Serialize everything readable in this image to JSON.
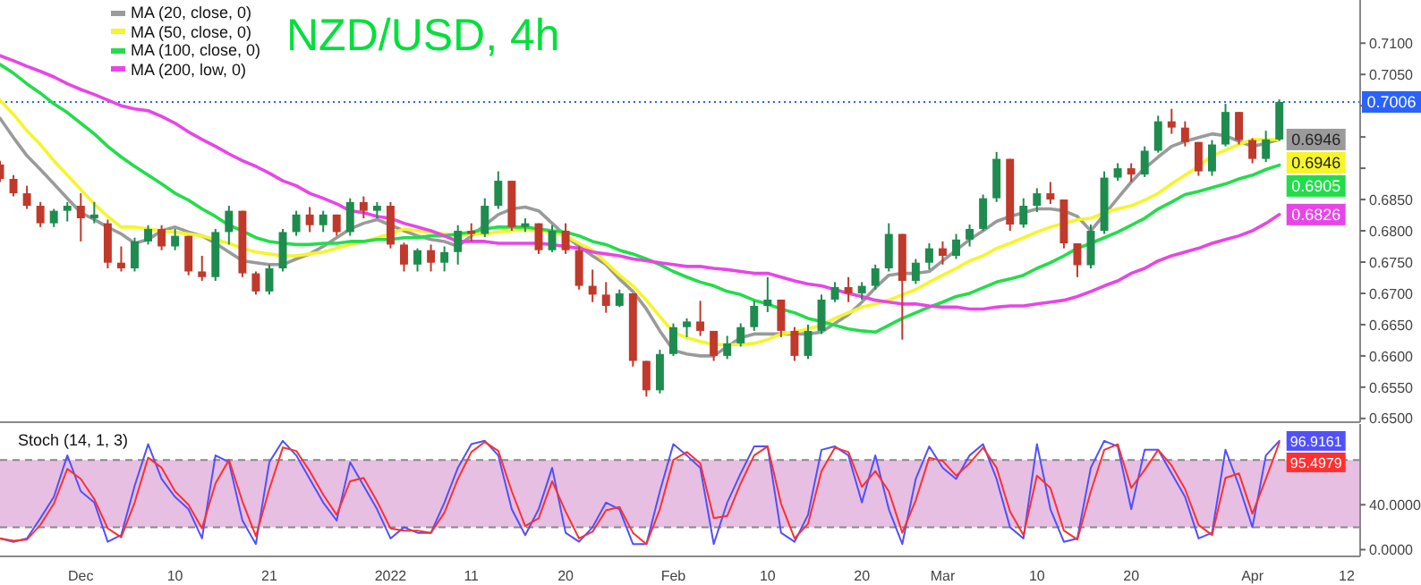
{
  "chart_data": [
    {
      "type": "candlestick",
      "title": "NZD/USD, 4h",
      "categories": [
        null,
        null,
        null,
        null,
        null,
        null,
        null,
        null,
        null,
        null,
        null,
        null,
        null,
        null,
        null,
        null,
        null,
        null,
        null,
        null,
        null,
        null,
        null,
        null,
        null,
        null,
        null,
        null,
        null,
        null,
        null,
        null,
        null,
        null,
        null,
        null,
        null,
        null,
        null,
        null,
        null,
        null,
        null,
        null,
        null,
        null,
        null,
        null,
        null,
        null,
        null,
        null,
        null,
        null,
        null,
        null,
        null,
        null,
        null,
        null,
        null,
        null,
        null,
        null,
        null,
        null,
        null,
        null,
        null,
        null,
        null,
        null,
        null,
        null,
        null,
        null,
        null,
        null,
        null,
        null,
        null,
        null,
        null,
        null,
        null,
        null,
        null,
        null,
        null,
        null,
        null,
        null,
        null,
        null,
        null,
        null,
        null,
        null,
        null,
        null,
        null,
        null
      ],
      "ohlc": [
        [
          0.6906,
          0.6912,
          0.6878,
          0.6883
        ],
        [
          0.6883,
          0.6889,
          0.6855,
          0.686
        ],
        [
          0.686,
          0.6872,
          0.6835,
          0.684
        ],
        [
          0.684,
          0.6846,
          0.6806,
          0.6812
        ],
        [
          0.6812,
          0.6835,
          0.6806,
          0.6832
        ],
        [
          0.6832,
          0.6846,
          0.6815,
          0.684
        ],
        [
          0.684,
          0.686,
          0.6783,
          0.682
        ],
        [
          0.682,
          0.6846,
          0.6812,
          0.6826
        ],
        [
          0.6812,
          0.6818,
          0.674,
          0.6749
        ],
        [
          0.6749,
          0.6775,
          0.6735,
          0.674
        ],
        [
          0.674,
          0.6789,
          0.6735,
          0.6783
        ],
        [
          0.6783,
          0.6809,
          0.6778,
          0.6803
        ],
        [
          0.6803,
          0.6809,
          0.6769,
          0.6775
        ],
        [
          0.6775,
          0.6803,
          0.6769,
          0.6792
        ],
        [
          0.6792,
          0.6792,
          0.6729,
          0.6735
        ],
        [
          0.6735,
          0.676,
          0.672,
          0.6726
        ],
        [
          0.6726,
          0.6803,
          0.672,
          0.6798
        ],
        [
          0.6798,
          0.684,
          0.6778,
          0.6832
        ],
        [
          0.6832,
          0.6832,
          0.6726,
          0.6732
        ],
        [
          0.6732,
          0.6735,
          0.6698,
          0.6703
        ],
        [
          0.6703,
          0.6746,
          0.6698,
          0.674
        ],
        [
          0.674,
          0.6803,
          0.6735,
          0.6798
        ],
        [
          0.6798,
          0.6832,
          0.6792,
          0.6826
        ],
        [
          0.6826,
          0.6838,
          0.6798,
          0.6809
        ],
        [
          0.6809,
          0.6832,
          0.6798,
          0.6826
        ],
        [
          0.6826,
          0.6826,
          0.6792,
          0.6798
        ],
        [
          0.6798,
          0.6852,
          0.6792,
          0.6846
        ],
        [
          0.6846,
          0.6855,
          0.682,
          0.6832
        ],
        [
          0.6832,
          0.6846,
          0.682,
          0.684
        ],
        [
          0.684,
          0.6846,
          0.6772,
          0.6778
        ],
        [
          0.6778,
          0.6781,
          0.6735,
          0.6746
        ],
        [
          0.6746,
          0.6772,
          0.6735,
          0.6769
        ],
        [
          0.6769,
          0.6778,
          0.6735,
          0.6749
        ],
        [
          0.6749,
          0.6775,
          0.6735,
          0.6766
        ],
        [
          0.6766,
          0.6809,
          0.6746,
          0.68
        ],
        [
          0.68,
          0.6812,
          0.6783,
          0.6795
        ],
        [
          0.6795,
          0.6852,
          0.679,
          0.684
        ],
        [
          0.684,
          0.6895,
          0.6835,
          0.688
        ],
        [
          0.688,
          0.688,
          0.68,
          0.6806
        ],
        [
          0.6806,
          0.682,
          0.6798,
          0.6812
        ],
        [
          0.6812,
          0.6812,
          0.6763,
          0.6769
        ],
        [
          0.6769,
          0.6809,
          0.6766,
          0.68
        ],
        [
          0.68,
          0.6812,
          0.6763,
          0.6769
        ],
        [
          0.6769,
          0.6775,
          0.6706,
          0.6712
        ],
        [
          0.6712,
          0.6738,
          0.6686,
          0.6698
        ],
        [
          0.6698,
          0.6718,
          0.6669,
          0.668
        ],
        [
          0.668,
          0.6706,
          0.6678,
          0.67
        ],
        [
          0.67,
          0.67,
          0.6583,
          0.6592
        ],
        [
          0.6592,
          0.6592,
          0.6535,
          0.6545
        ],
        [
          0.6545,
          0.661,
          0.654,
          0.6603
        ],
        [
          0.6603,
          0.6652,
          0.66,
          0.6646
        ],
        [
          0.6646,
          0.666,
          0.663,
          0.6655
        ],
        [
          0.6655,
          0.6688,
          0.6632,
          0.664
        ],
        [
          0.664,
          0.664,
          0.6592,
          0.66
        ],
        [
          0.66,
          0.6632,
          0.6595,
          0.662
        ],
        [
          0.662,
          0.6652,
          0.6615,
          0.6646
        ],
        [
          0.6646,
          0.6688,
          0.664,
          0.668
        ],
        [
          0.668,
          0.6726,
          0.667,
          0.669
        ],
        [
          0.669,
          0.669,
          0.663,
          0.664
        ],
        [
          0.664,
          0.6646,
          0.6592,
          0.66
        ],
        [
          0.66,
          0.665,
          0.6595,
          0.664
        ],
        [
          0.664,
          0.6698,
          0.6635,
          0.669
        ],
        [
          0.669,
          0.6718,
          0.6686,
          0.671
        ],
        [
          0.671,
          0.6726,
          0.6686,
          0.67
        ],
        [
          0.67,
          0.6718,
          0.669,
          0.6712
        ],
        [
          0.6712,
          0.6746,
          0.6706,
          0.674
        ],
        [
          0.674,
          0.6812,
          0.6735,
          0.6795
        ],
        [
          0.6795,
          0.6795,
          0.6626,
          0.672
        ],
        [
          0.672,
          0.6755,
          0.6715,
          0.6749
        ],
        [
          0.6749,
          0.678,
          0.6738,
          0.6772
        ],
        [
          0.6772,
          0.6783,
          0.6746,
          0.676
        ],
        [
          0.676,
          0.6795,
          0.6755,
          0.6786
        ],
        [
          0.6786,
          0.681,
          0.6775,
          0.6803
        ],
        [
          0.6803,
          0.6858,
          0.68,
          0.6852
        ],
        [
          0.6852,
          0.6926,
          0.6846,
          0.6915
        ],
        [
          0.6915,
          0.6915,
          0.68,
          0.681
        ],
        [
          0.681,
          0.6852,
          0.6805,
          0.684
        ],
        [
          0.684,
          0.6868,
          0.683,
          0.686
        ],
        [
          0.686,
          0.6878,
          0.6843,
          0.685
        ],
        [
          0.685,
          0.685,
          0.6772,
          0.678
        ],
        [
          0.678,
          0.678,
          0.6726,
          0.6745
        ],
        [
          0.6745,
          0.681,
          0.674,
          0.68
        ],
        [
          0.68,
          0.6895,
          0.6795,
          0.6885
        ],
        [
          0.6885,
          0.6908,
          0.688,
          0.69
        ],
        [
          0.69,
          0.6908,
          0.6878,
          0.689
        ],
        [
          0.689,
          0.6935,
          0.6886,
          0.6928
        ],
        [
          0.6928,
          0.6984,
          0.6925,
          0.6975
        ],
        [
          0.6975,
          0.6995,
          0.6955,
          0.6965
        ],
        [
          0.6965,
          0.6975,
          0.6935,
          0.6942
        ],
        [
          0.6942,
          0.6942,
          0.6888,
          0.6895
        ],
        [
          0.6895,
          0.6945,
          0.6888,
          0.6938
        ],
        [
          0.6938,
          0.7003,
          0.6935,
          0.699
        ],
        [
          0.699,
          0.699,
          0.6938,
          0.6945
        ],
        [
          0.6945,
          0.6948,
          0.6908,
          0.6915
        ],
        [
          0.6915,
          0.696,
          0.691,
          0.6946
        ],
        [
          0.6946,
          0.701,
          0.6944,
          0.7006
        ],
        null,
        null,
        null,
        null,
        null,
        null
      ],
      "series": [
        {
          "type": "line",
          "name": "MA (20, close, 0)",
          "color": "#9a9a9a",
          "values": [
            0.698,
            0.6949,
            0.692,
            0.6898,
            0.6875,
            0.6852,
            0.6829,
            0.6818,
            0.6806,
            0.6795,
            0.678,
            0.6786,
            0.68,
            0.6806,
            0.6798,
            0.6792,
            0.678,
            0.6766,
            0.6752,
            0.6749,
            0.6746,
            0.6746,
            0.6755,
            0.6763,
            0.6775,
            0.6789,
            0.6803,
            0.6812,
            0.6818,
            0.6809,
            0.68,
            0.6792,
            0.6786,
            0.6783,
            0.6775,
            0.6792,
            0.6809,
            0.6826,
            0.6835,
            0.6838,
            0.6832,
            0.6812,
            0.6792,
            0.6775,
            0.676,
            0.6746,
            0.6723,
            0.6703,
            0.6675,
            0.664,
            0.6609,
            0.6603,
            0.66,
            0.66,
            0.6615,
            0.6629,
            0.6635,
            0.6635,
            0.6635,
            0.6635,
            0.6635,
            0.6638,
            0.6652,
            0.6666,
            0.6686,
            0.6709,
            0.6729,
            0.6732,
            0.6732,
            0.6735,
            0.6752,
            0.6769,
            0.6786,
            0.68,
            0.6815,
            0.6823,
            0.6829,
            0.6835,
            0.6835,
            0.6832,
            0.6823,
            0.68,
            0.6826,
            0.6852,
            0.6878,
            0.69,
            0.6918,
            0.6935,
            0.6943,
            0.6949,
            0.6955,
            0.6952,
            0.6943,
            0.6935,
            0.694,
            0.6946,
            null,
            null,
            null,
            null,
            null,
            null
          ],
          "value_labels": [
            null,
            null,
            null,
            null,
            null,
            null,
            null,
            null,
            null,
            null,
            null,
            null,
            null,
            null,
            null,
            null,
            null,
            null,
            null,
            null,
            null,
            null,
            null,
            null,
            null,
            null,
            null,
            null,
            null,
            null,
            null,
            null,
            null,
            null,
            null,
            null,
            null,
            null,
            null,
            null,
            null,
            null,
            null,
            null,
            null,
            null,
            null,
            null,
            null,
            null,
            null,
            null,
            null,
            null,
            null,
            null,
            null,
            null,
            null,
            null,
            null,
            null,
            null,
            null,
            null,
            null,
            null,
            null,
            null,
            null,
            null,
            null,
            null,
            null,
            null,
            null,
            null,
            null,
            null,
            null,
            null,
            null,
            null,
            null,
            null,
            null,
            null,
            null,
            null,
            null,
            null,
            null,
            null,
            null,
            null,
            "0.6946",
            null,
            null,
            null,
            null,
            null,
            null
          ]
        },
        {
          "type": "line",
          "name": "MA (50, close, 0)",
          "color": "#f5f52a",
          "values": [
            0.7009,
            0.6986,
            0.696,
            0.6938,
            0.6912,
            0.6889,
            0.6866,
            0.6843,
            0.6823,
            0.6806,
            0.6806,
            0.6803,
            0.68,
            0.6798,
            0.6795,
            0.6792,
            0.6786,
            0.678,
            0.6772,
            0.6766,
            0.6763,
            0.676,
            0.676,
            0.6763,
            0.6766,
            0.6772,
            0.6778,
            0.6783,
            0.6789,
            0.6795,
            0.6803,
            0.68,
            0.6798,
            0.6795,
            0.6792,
            0.6795,
            0.6795,
            0.6798,
            0.68,
            0.6803,
            0.68,
            0.6798,
            0.6792,
            0.678,
            0.6769,
            0.6749,
            0.6729,
            0.6712,
            0.6689,
            0.6663,
            0.6638,
            0.6629,
            0.6623,
            0.6618,
            0.6618,
            0.6618,
            0.662,
            0.6626,
            0.6635,
            0.6638,
            0.6643,
            0.6649,
            0.666,
            0.6669,
            0.6678,
            0.6683,
            0.6689,
            0.6698,
            0.6706,
            0.6718,
            0.6729,
            0.674,
            0.6752,
            0.676,
            0.6772,
            0.678,
            0.6789,
            0.6798,
            0.6806,
            0.6812,
            0.6818,
            0.682,
            0.6829,
            0.6835,
            0.684,
            0.6849,
            0.686,
            0.6875,
            0.6889,
            0.6903,
            0.692,
            0.6929,
            0.6938,
            0.6946,
            0.6946,
            0.6946,
            null,
            null,
            null,
            null,
            null,
            null
          ],
          "value_labels": [
            null,
            null,
            null,
            null,
            null,
            null,
            null,
            null,
            null,
            null,
            null,
            null,
            null,
            null,
            null,
            null,
            null,
            null,
            null,
            null,
            null,
            null,
            null,
            null,
            null,
            null,
            null,
            null,
            null,
            null,
            null,
            null,
            null,
            null,
            null,
            null,
            null,
            null,
            null,
            null,
            null,
            null,
            null,
            null,
            null,
            null,
            null,
            null,
            null,
            null,
            null,
            null,
            null,
            null,
            null,
            null,
            null,
            null,
            null,
            null,
            null,
            null,
            null,
            null,
            null,
            null,
            null,
            null,
            null,
            null,
            null,
            null,
            null,
            null,
            null,
            null,
            null,
            null,
            null,
            null,
            null,
            null,
            null,
            null,
            null,
            null,
            null,
            null,
            null,
            null,
            null,
            null,
            null,
            null,
            null,
            "0.6946",
            null,
            null,
            null,
            null,
            null,
            null
          ]
        },
        {
          "type": "line",
          "name": "MA (100, close, 0)",
          "color": "#22dd4a",
          "values": [
            0.7066,
            0.7052,
            0.7035,
            0.702,
            0.7003,
            0.6989,
            0.6972,
            0.6955,
            0.6935,
            0.6918,
            0.6903,
            0.6889,
            0.6875,
            0.686,
            0.6849,
            0.6835,
            0.6823,
            0.6809,
            0.68,
            0.6789,
            0.6783,
            0.678,
            0.6778,
            0.6778,
            0.678,
            0.678,
            0.6783,
            0.6783,
            0.6786,
            0.6786,
            0.6789,
            0.6789,
            0.6792,
            0.6792,
            0.6795,
            0.6798,
            0.6803,
            0.6806,
            0.6806,
            0.6806,
            0.6803,
            0.68,
            0.6798,
            0.6792,
            0.6783,
            0.6778,
            0.6769,
            0.6763,
            0.6755,
            0.6746,
            0.6735,
            0.6726,
            0.6718,
            0.6712,
            0.6703,
            0.6698,
            0.6689,
            0.6683,
            0.6675,
            0.6669,
            0.666,
            0.6655,
            0.6649,
            0.6643,
            0.664,
            0.6638,
            0.6649,
            0.666,
            0.6669,
            0.6678,
            0.6686,
            0.6695,
            0.67,
            0.6709,
            0.6718,
            0.6723,
            0.6729,
            0.674,
            0.6749,
            0.676,
            0.6772,
            0.678,
            0.6789,
            0.6798,
            0.6809,
            0.682,
            0.6835,
            0.6846,
            0.6858,
            0.6863,
            0.6869,
            0.6875,
            0.6883,
            0.6889,
            0.6898,
            0.6905,
            null,
            null,
            null,
            null,
            null,
            null
          ],
          "value_labels": [
            null,
            null,
            null,
            null,
            null,
            null,
            null,
            null,
            null,
            null,
            null,
            null,
            null,
            null,
            null,
            null,
            null,
            null,
            null,
            null,
            null,
            null,
            null,
            null,
            null,
            null,
            null,
            null,
            null,
            null,
            null,
            null,
            null,
            null,
            null,
            null,
            null,
            null,
            null,
            null,
            null,
            null,
            null,
            null,
            null,
            null,
            null,
            null,
            null,
            null,
            null,
            null,
            null,
            null,
            null,
            null,
            null,
            null,
            null,
            null,
            null,
            null,
            null,
            null,
            null,
            null,
            null,
            null,
            null,
            null,
            null,
            null,
            null,
            null,
            null,
            null,
            null,
            null,
            null,
            null,
            null,
            null,
            null,
            null,
            null,
            null,
            null,
            null,
            null,
            null,
            null,
            null,
            null,
            null,
            null,
            "0.6905",
            null,
            null,
            null,
            null,
            null,
            null
          ]
        },
        {
          "type": "line",
          "name": "MA (200, low, 0)",
          "color": "#e845e8",
          "values": [
            0.708,
            0.7072,
            0.7063,
            0.7055,
            0.7046,
            0.7035,
            0.7026,
            0.7018,
            0.7009,
            0.7,
            0.6995,
            0.6992,
            0.6983,
            0.6972,
            0.6958,
            0.6946,
            0.6935,
            0.6923,
            0.6912,
            0.6903,
            0.6892,
            0.688,
            0.6872,
            0.686,
            0.6852,
            0.6843,
            0.6832,
            0.6829,
            0.6823,
            0.682,
            0.6812,
            0.6806,
            0.68,
            0.6792,
            0.6783,
            0.6783,
            0.6783,
            0.678,
            0.678,
            0.678,
            0.678,
            0.6778,
            0.6775,
            0.6772,
            0.6766,
            0.6763,
            0.676,
            0.6755,
            0.6752,
            0.6749,
            0.6746,
            0.6743,
            0.6743,
            0.674,
            0.6738,
            0.6735,
            0.6732,
            0.6732,
            0.6726,
            0.672,
            0.6715,
            0.6712,
            0.6706,
            0.67,
            0.6695,
            0.6689,
            0.6686,
            0.6683,
            0.6683,
            0.668,
            0.6678,
            0.6678,
            0.6675,
            0.6675,
            0.6678,
            0.668,
            0.668,
            0.6683,
            0.6686,
            0.6689,
            0.6695,
            0.6703,
            0.6712,
            0.672,
            0.6732,
            0.674,
            0.6752,
            0.676,
            0.6766,
            0.6772,
            0.678,
            0.6786,
            0.6792,
            0.68,
            0.6812,
            0.6826,
            null,
            null,
            null,
            null,
            null,
            null
          ],
          "value_labels": [
            null,
            null,
            null,
            null,
            null,
            null,
            null,
            null,
            null,
            null,
            null,
            null,
            null,
            null,
            null,
            null,
            null,
            null,
            null,
            null,
            null,
            null,
            null,
            null,
            null,
            null,
            null,
            null,
            null,
            null,
            null,
            null,
            null,
            null,
            null,
            null,
            null,
            null,
            null,
            null,
            null,
            null,
            null,
            null,
            null,
            null,
            null,
            null,
            null,
            null,
            null,
            null,
            null,
            null,
            null,
            null,
            null,
            null,
            null,
            null,
            null,
            null,
            null,
            null,
            null,
            null,
            null,
            null,
            null,
            null,
            null,
            null,
            null,
            null,
            null,
            null,
            null,
            null,
            null,
            null,
            null,
            null,
            null,
            null,
            null,
            null,
            null,
            null,
            null,
            null,
            null,
            null,
            null,
            null,
            null,
            "0.6826",
            null,
            null,
            null,
            null,
            null,
            null
          ]
        }
      ],
      "ylim": [
        0.6494,
        0.7169
      ],
      "yticks": [
        {
          "value": 0.65,
          "label": "0.6500"
        },
        {
          "value": 0.655,
          "label": "0.6550"
        },
        {
          "value": 0.66,
          "label": "0.6600"
        },
        {
          "value": 0.665,
          "label": "0.6650"
        },
        {
          "value": 0.67,
          "label": "0.6700"
        },
        {
          "value": 0.675,
          "label": "0.6750"
        },
        {
          "value": 0.68,
          "label": "0.6800"
        },
        {
          "value": 0.685,
          "label": "0.6850"
        },
        {
          "value": 0.69,
          "label": null
        },
        {
          "value": 0.695,
          "label": null
        },
        {
          "value": 0.7,
          "label": null
        },
        {
          "value": 0.705,
          "label": "0.7050"
        },
        {
          "value": 0.71,
          "label": "0.7100"
        }
      ],
      "ref_lines": [
        {
          "axis": "y",
          "value": 0.7006,
          "label": "0.7006",
          "color": "#2962ff",
          "line_style": "dotted"
        }
      ],
      "legend": "top left",
      "tick_labels": "y"
    },
    {
      "type": "line",
      "title": "Stoch (14, 1, 3)",
      "categories": [
        null,
        null,
        null,
        null,
        null,
        null,
        "Dec",
        null,
        null,
        null,
        null,
        null,
        null,
        "10",
        null,
        null,
        null,
        null,
        null,
        null,
        "21",
        null,
        null,
        null,
        null,
        null,
        null,
        null,
        null,
        "2022",
        null,
        null,
        null,
        null,
        null,
        "11",
        null,
        null,
        null,
        null,
        null,
        null,
        "20",
        null,
        null,
        null,
        null,
        null,
        null,
        null,
        "Feb",
        null,
        null,
        null,
        null,
        null,
        null,
        "10",
        null,
        null,
        null,
        null,
        null,
        null,
        "20",
        null,
        null,
        null,
        null,
        null,
        "Mar",
        null,
        null,
        null,
        null,
        null,
        null,
        "10",
        null,
        null,
        null,
        null,
        null,
        null,
        "20",
        null,
        null,
        null,
        null,
        null,
        null,
        null,
        null,
        "Apr",
        null,
        null,
        null,
        null,
        null,
        null,
        "12",
        null
      ],
      "series": [
        {
          "color": "#5050ff",
          "values": [
            10,
            7,
            10,
            28,
            47,
            84,
            52,
            42,
            7,
            13,
            57,
            94,
            63,
            47,
            36,
            10,
            84,
            78,
            26,
            5,
            78,
            97,
            84,
            63,
            42,
            26,
            78,
            57,
            36,
            10,
            20,
            15,
            15,
            42,
            73,
            94,
            97,
            84,
            36,
            13,
            36,
            73,
            15,
            7,
            20,
            42,
            36,
            5,
            5,
            52,
            94,
            84,
            73,
            5,
            42,
            68,
            92,
            92,
            15,
            7,
            31,
            89,
            92,
            84,
            42,
            84,
            36,
            5,
            63,
            92,
            73,
            63,
            84,
            94,
            63,
            20,
            10,
            94,
            36,
            7,
            10,
            73,
            97,
            92,
            36,
            89,
            89,
            68,
            47,
            10,
            15,
            89,
            57,
            20,
            84,
            96.9161,
            null,
            null,
            null,
            null,
            null,
            null
          ],
          "value_labels": [
            null,
            null,
            null,
            null,
            null,
            null,
            null,
            null,
            null,
            null,
            null,
            null,
            null,
            null,
            null,
            null,
            null,
            null,
            null,
            null,
            null,
            null,
            null,
            null,
            null,
            null,
            null,
            null,
            null,
            null,
            null,
            null,
            null,
            null,
            null,
            null,
            null,
            null,
            null,
            null,
            null,
            null,
            null,
            null,
            null,
            null,
            null,
            null,
            null,
            null,
            null,
            null,
            null,
            null,
            null,
            null,
            null,
            null,
            null,
            null,
            null,
            null,
            null,
            null,
            null,
            null,
            null,
            null,
            null,
            null,
            null,
            null,
            null,
            null,
            null,
            null,
            null,
            null,
            null,
            null,
            null,
            null,
            null,
            null,
            null,
            null,
            null,
            null,
            null,
            null,
            null,
            null,
            null,
            null,
            null,
            "96.9161",
            null,
            null,
            null,
            null,
            null,
            null
          ]
        },
        {
          "color": "#ff3030",
          "values": [
            10,
            8,
            9,
            22,
            41,
            72,
            63,
            45,
            19,
            11,
            42,
            82,
            73,
            52,
            40,
            19,
            59,
            80,
            43,
            12,
            54,
            91,
            88,
            70,
            49,
            31,
            61,
            64,
            43,
            19,
            17,
            17,
            15,
            33,
            63,
            87,
            96,
            88,
            52,
            21,
            28,
            61,
            34,
            10,
            16,
            35,
            38,
            15,
            5,
            36,
            80,
            87,
            77,
            28,
            30,
            59,
            84,
            92,
            41,
            10,
            23,
            70,
            91,
            87,
            56,
            70,
            52,
            15,
            44,
            82,
            79,
            66,
            77,
            91,
            73,
            34,
            13,
            66,
            55,
            17,
            9,
            52,
            89,
            94,
            55,
            71,
            89,
            75,
            54,
            22,
            13,
            64,
            68,
            32,
            63,
            95.4979,
            null,
            null,
            null,
            null,
            null,
            null
          ],
          "value_labels": [
            null,
            null,
            null,
            null,
            null,
            null,
            null,
            null,
            null,
            null,
            null,
            null,
            null,
            null,
            null,
            null,
            null,
            null,
            null,
            null,
            null,
            null,
            null,
            null,
            null,
            null,
            null,
            null,
            null,
            null,
            null,
            null,
            null,
            null,
            null,
            null,
            null,
            null,
            null,
            null,
            null,
            null,
            null,
            null,
            null,
            null,
            null,
            null,
            null,
            null,
            null,
            null,
            null,
            null,
            null,
            null,
            null,
            null,
            null,
            null,
            null,
            null,
            null,
            null,
            null,
            null,
            null,
            null,
            null,
            null,
            null,
            null,
            null,
            null,
            null,
            null,
            null,
            null,
            null,
            null,
            null,
            null,
            null,
            null,
            null,
            null,
            null,
            null,
            null,
            null,
            null,
            null,
            null,
            null,
            null,
            "95.4979",
            null,
            null,
            null,
            null,
            null,
            null
          ]
        }
      ],
      "ylim": [
        -6,
        112
      ],
      "yticks": [
        {
          "value": 0,
          "label": "0.0000"
        },
        {
          "value": 40,
          "label": "40.0000"
        }
      ],
      "bands": [
        {
          "axis": "y",
          "from": 20,
          "to": 80,
          "color": "#e6bfe3"
        }
      ],
      "ref_lines": [
        {
          "axis": "y",
          "value": 20,
          "color": "#888888",
          "line_style": "dashed"
        },
        {
          "axis": "y",
          "value": 80,
          "color": "#888888",
          "line_style": "dashed"
        }
      ]
    }
  ]
}
